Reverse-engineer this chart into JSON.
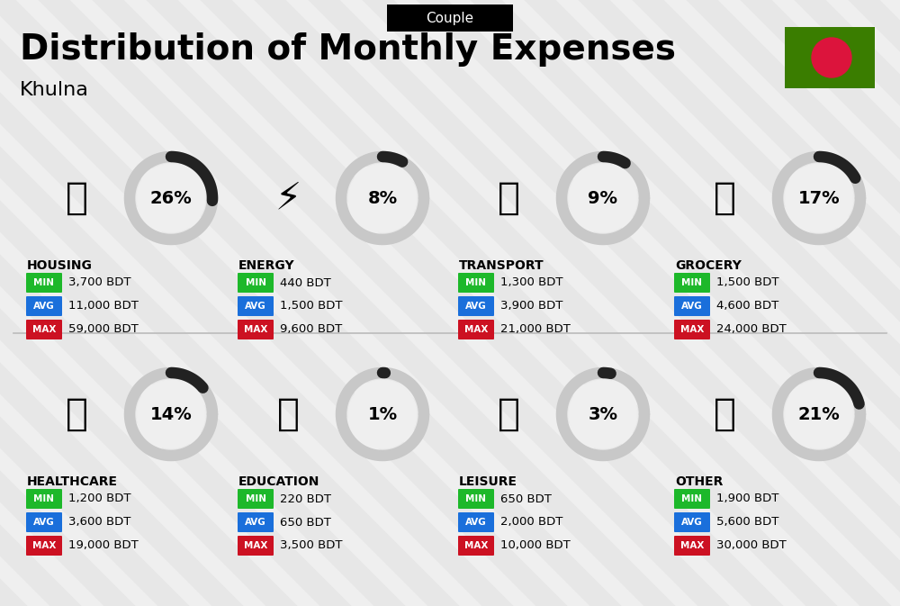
{
  "title": "Distribution of Monthly Expenses",
  "subtitle": "Couple",
  "city": "Khulna",
  "bg_color": "#efefef",
  "categories": [
    {
      "name": "HOUSING",
      "pct": 26,
      "min": "3,700 BDT",
      "avg": "11,000 BDT",
      "max": "59,000 BDT",
      "row": 0,
      "col": 0
    },
    {
      "name": "ENERGY",
      "pct": 8,
      "min": "440 BDT",
      "avg": "1,500 BDT",
      "max": "9,600 BDT",
      "row": 0,
      "col": 1
    },
    {
      "name": "TRANSPORT",
      "pct": 9,
      "min": "1,300 BDT",
      "avg": "3,900 BDT",
      "max": "21,000 BDT",
      "row": 0,
      "col": 2
    },
    {
      "name": "GROCERY",
      "pct": 17,
      "min": "1,500 BDT",
      "avg": "4,600 BDT",
      "max": "24,000 BDT",
      "row": 0,
      "col": 3
    },
    {
      "name": "HEALTHCARE",
      "pct": 14,
      "min": "1,200 BDT",
      "avg": "3,600 BDT",
      "max": "19,000 BDT",
      "row": 1,
      "col": 0
    },
    {
      "name": "EDUCATION",
      "pct": 1,
      "min": "220 BDT",
      "avg": "650 BDT",
      "max": "3,500 BDT",
      "row": 1,
      "col": 1
    },
    {
      "name": "LEISURE",
      "pct": 3,
      "min": "650 BDT",
      "avg": "2,000 BDT",
      "max": "10,000 BDT",
      "row": 1,
      "col": 2
    },
    {
      "name": "OTHER",
      "pct": 21,
      "min": "1,900 BDT",
      "avg": "5,600 BDT",
      "max": "30,000 BDT",
      "row": 1,
      "col": 3
    }
  ],
  "color_min": "#1db82a",
  "color_avg": "#1a6fdb",
  "color_max": "#cc1122",
  "flag_green": "#3a7d00",
  "flag_red": "#dc143c",
  "arc_dark": "#222222",
  "arc_gray": "#c8c8c8",
  "stripe_color": "#e0e0e0",
  "icon_emojis": {
    "HOUSING": "🏙",
    "ENERGY": "⚡",
    "TRANSPORT": "🚌",
    "GROCERY": "🛒",
    "HEALTHCARE": "💗",
    "EDUCATION": "🎓",
    "LEISURE": "🛍",
    "OTHER": "💰"
  }
}
